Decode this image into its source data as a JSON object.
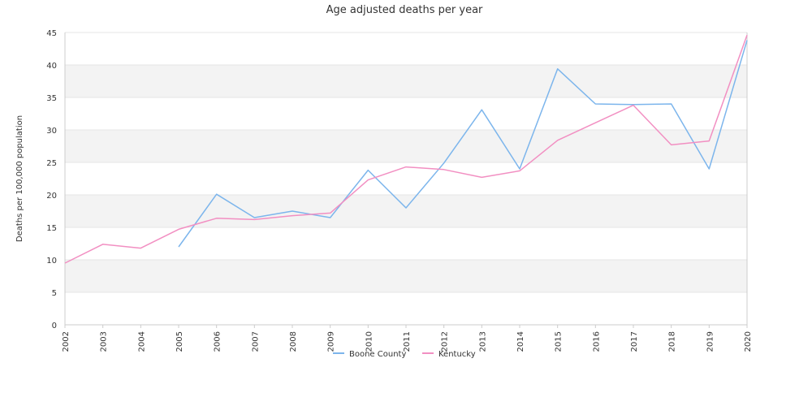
{
  "chart_data": {
    "type": "line",
    "title": "Age adjusted deaths per year",
    "xlabel": "",
    "ylabel": "Deaths per 100,000 population",
    "x": [
      "2002",
      "2003",
      "2004",
      "2005",
      "2006",
      "2007",
      "2008",
      "2009",
      "2010",
      "2011",
      "2012",
      "2013",
      "2014",
      "2015",
      "2016",
      "2017",
      "2018",
      "2019",
      "2020"
    ],
    "ylim": [
      0,
      45
    ],
    "yticks": [
      0,
      5,
      10,
      15,
      20,
      25,
      30,
      35,
      40,
      45
    ],
    "grid": "alternating horizontal bands",
    "legend_position": "bottom-center",
    "series": [
      {
        "name": "Boone County",
        "color": "#7cb5ec",
        "values": [
          null,
          null,
          null,
          12.0,
          20.1,
          16.5,
          17.5,
          16.5,
          23.8,
          18.0,
          24.9,
          33.1,
          24.0,
          39.4,
          34.0,
          33.9,
          34.0,
          24.0,
          43.8
        ]
      },
      {
        "name": "Kentucky",
        "color": "#f28fc2",
        "values": [
          9.5,
          12.4,
          11.8,
          14.7,
          16.4,
          16.2,
          16.8,
          17.2,
          22.3,
          24.3,
          23.9,
          22.7,
          23.7,
          28.4,
          31.1,
          33.8,
          27.7,
          28.3,
          44.6
        ]
      }
    ]
  }
}
